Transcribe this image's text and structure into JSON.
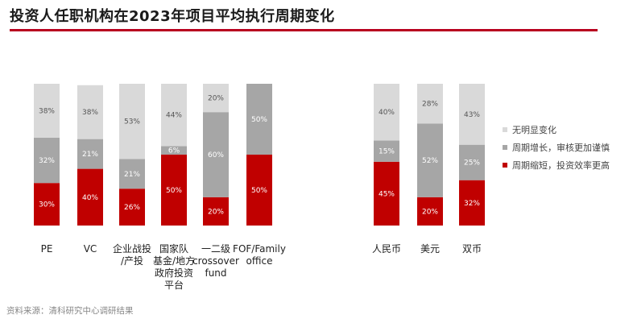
{
  "title": "投资人任职机构在2023年项目平均执行周期变化",
  "footer": "资料来源：清科研究中心调研结果",
  "colors": {
    "accent": "#b8001f",
    "no_change": "#d9d9d9",
    "increase": "#a6a6a6",
    "decrease": "#c00000"
  },
  "chart_data": {
    "type": "bar",
    "stacked": true,
    "unit": "%",
    "groups": [
      {
        "name": "institution-type",
        "categories": [
          "PE",
          "VC",
          "企业战投\n/产投",
          "国家队\n基金/地方\n政府投资\n平台",
          "一二级\ncrossover\nfund",
          "FOF/Family\noffice"
        ],
        "series": [
          {
            "name": "周期缩短，投资效率更高",
            "values": [
              30,
              40,
              26,
              50,
              20,
              50
            ]
          },
          {
            "name": "周期增长，审核更加谨慎",
            "values": [
              32,
              21,
              21,
              6,
              60,
              50
            ]
          },
          {
            "name": "无明显变化",
            "values": [
              38,
              38,
              53,
              44,
              20,
              0
            ]
          }
        ]
      },
      {
        "name": "currency",
        "categories": [
          "人民币",
          "美元",
          "双币"
        ],
        "series": [
          {
            "name": "周期缩短，投资效率更高",
            "values": [
              45,
              20,
              32
            ]
          },
          {
            "name": "周期增长，审核更加谨慎",
            "values": [
              15,
              52,
              25
            ]
          },
          {
            "name": "无明显变化",
            "values": [
              40,
              28,
              43
            ]
          }
        ]
      }
    ],
    "legend": {
      "position": "right",
      "entries": [
        "无明显变化",
        "周期增长，审核更加谨慎",
        "周期缩短，投资效率更高"
      ]
    }
  }
}
